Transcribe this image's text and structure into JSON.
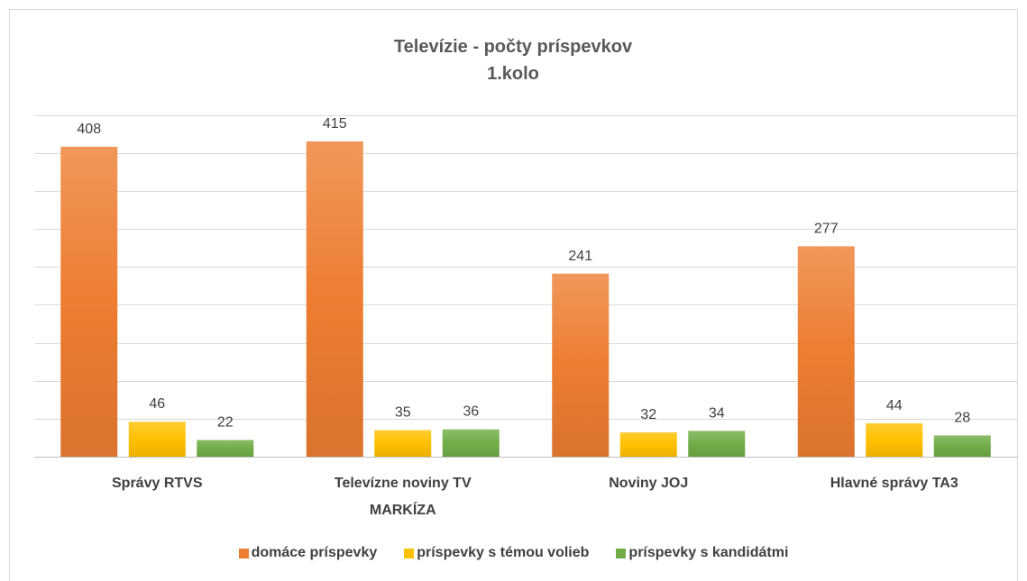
{
  "chart_data": {
    "type": "bar",
    "title": "Televízie - počty príspevkov",
    "subtitle": "1.kolo",
    "categories": [
      "Správy RTVS",
      "Televízne noviny TV MARKÍZA",
      "Noviny JOJ",
      "Hlavné správy TA3"
    ],
    "series": [
      {
        "name": "domáce príspevky",
        "color": "#ed7d31",
        "values": [
          408,
          415,
          241,
          277
        ]
      },
      {
        "name": "príspevky s témou volieb",
        "color": "#ffc000",
        "values": [
          46,
          35,
          32,
          44
        ]
      },
      {
        "name": "príspevky s kandidátmi",
        "color": "#70ad47",
        "values": [
          22,
          36,
          34,
          28
        ]
      }
    ],
    "ylim": [
      0,
      450
    ],
    "yticks": [
      0,
      50,
      100,
      150,
      200,
      250,
      300,
      350,
      400,
      450
    ],
    "grid": true,
    "legend": "bottom"
  }
}
